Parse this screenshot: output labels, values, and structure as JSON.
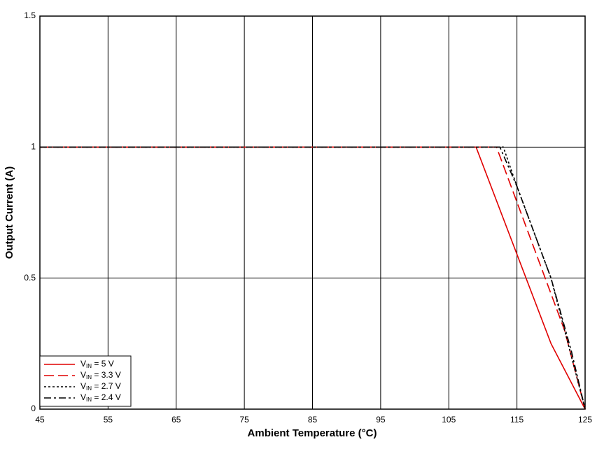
{
  "chart_data": {
    "type": "line",
    "xlabel": "Ambient Temperature (°C)",
    "ylabel": "Output Current (A)",
    "xlim": [
      45,
      125
    ],
    "xticks": [
      45,
      55,
      65,
      75,
      85,
      95,
      105,
      115,
      125
    ],
    "ylim": [
      0,
      1.5
    ],
    "yticks": [
      0,
      0.5,
      1,
      1.5
    ],
    "grid": true,
    "legend": "lower left",
    "series": [
      {
        "name": "VIN = 5 V",
        "color": "#e00000",
        "dash": "solid",
        "x": [
          45,
          109,
          120,
          125
        ],
        "values": [
          1,
          1,
          0.25,
          0
        ]
      },
      {
        "name": "VIN = 3.3 V",
        "color": "#e00000",
        "dash": "dashed",
        "x": [
          45,
          112,
          122,
          125
        ],
        "values": [
          1,
          1,
          0.3,
          0
        ]
      },
      {
        "name": "VIN = 2.7 V",
        "color": "#000000",
        "dash": "dotted",
        "x": [
          45,
          113,
          115,
          120,
          123,
          125
        ],
        "values": [
          1,
          1,
          0.85,
          0.5,
          0.2,
          0
        ]
      },
      {
        "name": "VIN = 2.4 V",
        "color": "#000000",
        "dash": "dashdot",
        "x": [
          45,
          112.5,
          115,
          120,
          123,
          125
        ],
        "values": [
          1,
          1,
          0.85,
          0.5,
          0.22,
          0
        ]
      }
    ]
  }
}
